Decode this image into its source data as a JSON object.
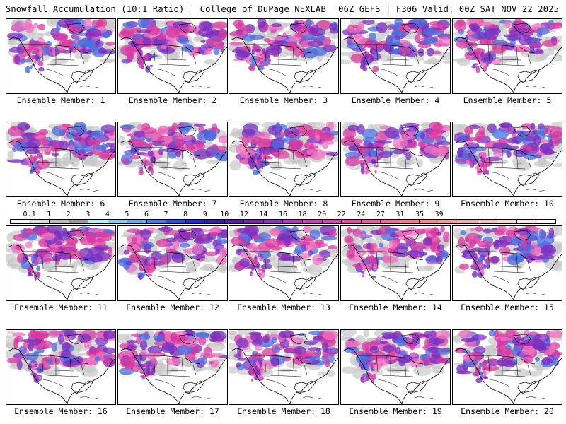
{
  "header": {
    "left": "Snowfall Accumulation (10:1 Ratio) | College of DuPage NEXLAB",
    "right": "06Z GEFS | F306 Valid: 00Z SAT NOV 22 2025"
  },
  "colors": {
    "land": "#ffffff",
    "borders": "#000000",
    "snow_light": "#c8c8c8",
    "snow_blue": "#4a6fe0",
    "snow_purple": "#7a2fc0",
    "snow_magenta": "#d83aa0",
    "snow_pink": "#f070c0"
  },
  "legend": {
    "labels": [
      "0.1",
      "1",
      "2",
      "3",
      "4",
      "5",
      "6",
      "7",
      "8",
      "9",
      "10",
      "12",
      "14",
      "16",
      "18",
      "20",
      "22",
      "24",
      "27",
      "31",
      "35",
      "39"
    ],
    "colors": [
      "#f6f6f6",
      "#dedede",
      "#bcbcbc",
      "#9a9a9a",
      "#b6f0f0",
      "#8fc8f4",
      "#6aa6f2",
      "#4a7ae8",
      "#2a52d8",
      "#1e2fc4",
      "#3a1ea8",
      "#5a1ca4",
      "#7a24b0",
      "#9430b8",
      "#ae3cbc",
      "#c444b8",
      "#d04ab0",
      "#dc52a8",
      "#e65ea2",
      "#ee6c98",
      "#f47a8e",
      "#f48890",
      "#f29a9c",
      "#f0aeae",
      "#f2c4c0",
      "#f4d8d2",
      "#f8ebe6",
      "#fcf7f4"
    ]
  },
  "members": [
    {
      "caption": "Ensemble Member: 1"
    },
    {
      "caption": "Ensemble Member: 2"
    },
    {
      "caption": "Ensemble Member: 3"
    },
    {
      "caption": "Ensemble Member: 4"
    },
    {
      "caption": "Ensemble Member: 5"
    },
    {
      "caption": "Ensemble Member: 6"
    },
    {
      "caption": "Ensemble Member: 7"
    },
    {
      "caption": "Ensemble Member: 8"
    },
    {
      "caption": "Ensemble Member: 9"
    },
    {
      "caption": "Ensemble Member: 10"
    },
    {
      "caption": "Ensemble Member: 11"
    },
    {
      "caption": "Ensemble Member: 12"
    },
    {
      "caption": "Ensemble Member: 13"
    },
    {
      "caption": "Ensemble Member: 14"
    },
    {
      "caption": "Ensemble Member: 15"
    },
    {
      "caption": "Ensemble Member: 16"
    },
    {
      "caption": "Ensemble Member: 17"
    },
    {
      "caption": "Ensemble Member: 18"
    },
    {
      "caption": "Ensemble Member: 19"
    },
    {
      "caption": "Ensemble Member: 20"
    }
  ]
}
